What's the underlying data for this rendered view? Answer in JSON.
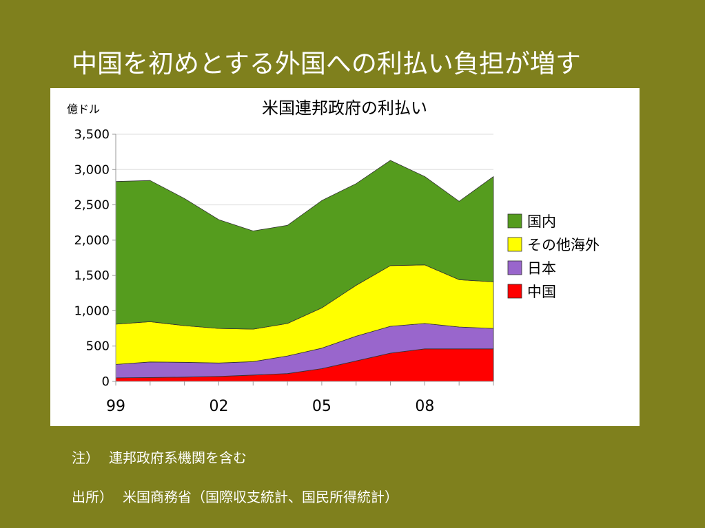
{
  "slide": {
    "title": "中国を初めとする外国への利払い負担が増す",
    "background": "#7f801d"
  },
  "notes": [
    {
      "label": "注）",
      "text": "連邦政府系機関を含む"
    },
    {
      "label": "出所）",
      "text": "米国商務省（国際収支統計、国民所得統計）"
    }
  ],
  "chart_data": {
    "type": "area",
    "stacked": true,
    "title": "米国連邦政府の利払い",
    "ylabel": "億ドル",
    "ylim": [
      0,
      3500
    ],
    "yticks": [
      0,
      500,
      1000,
      1500,
      2000,
      2500,
      3000,
      3500
    ],
    "ytick_labels": [
      "0",
      "500",
      "1,000",
      "1,500",
      "2,000",
      "2,500",
      "3,000",
      "3,500"
    ],
    "x": [
      "1999",
      "2000",
      "2001",
      "2002",
      "2003",
      "2004",
      "2005",
      "2006",
      "2007",
      "2008",
      "2009",
      "2010"
    ],
    "xtick_labels": [
      {
        "at": "1999",
        "label": "99"
      },
      {
        "at": "2002",
        "label": "02"
      },
      {
        "at": "2005",
        "label": "05"
      },
      {
        "at": "2008",
        "label": "08"
      }
    ],
    "legend_position": "right",
    "series": [
      {
        "name": "中国",
        "color": "#ff0000",
        "values": [
          50,
          55,
          60,
          70,
          90,
          110,
          180,
          290,
          400,
          460,
          460,
          460
        ]
      },
      {
        "name": "日本",
        "color": "#9966cc",
        "values": [
          190,
          220,
          210,
          190,
          190,
          250,
          290,
          350,
          380,
          360,
          310,
          290
        ]
      },
      {
        "name": "その他海外",
        "color": "#ffff00",
        "values": [
          570,
          570,
          520,
          490,
          460,
          460,
          570,
          720,
          860,
          830,
          670,
          660
        ]
      },
      {
        "name": "国内",
        "color": "#559c1e",
        "values": [
          2020,
          2000,
          1800,
          1540,
          1390,
          1390,
          1520,
          1440,
          1490,
          1250,
          1110,
          1490
        ]
      }
    ]
  }
}
